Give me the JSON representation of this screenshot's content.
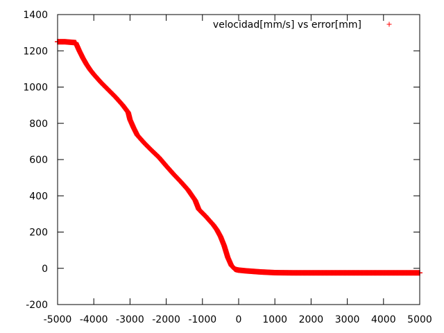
{
  "chart_data": {
    "type": "scatter",
    "title": "",
    "xlabel": "",
    "ylabel": "",
    "xlim": [
      -5000,
      5000
    ],
    "ylim": [
      -200,
      1400
    ],
    "x_ticks": [
      -5000,
      -4000,
      -3000,
      -2000,
      -1000,
      0,
      1000,
      2000,
      3000,
      4000,
      5000
    ],
    "y_ticks": [
      -200,
      0,
      200,
      400,
      600,
      800,
      1000,
      1200,
      1400
    ],
    "grid": false,
    "legend": {
      "position": "top-right"
    },
    "series": [
      {
        "name": "velocidad[mm/s] vs error[mm]",
        "color": "#ff0000",
        "marker": "plus",
        "x": [
          -5000,
          -4800,
          -4500,
          -4400,
          -4300,
          -4200,
          -4100,
          -4000,
          -3800,
          -3600,
          -3400,
          -3200,
          -3050,
          -3000,
          -2900,
          -2800,
          -2600,
          -2400,
          -2200,
          -2000,
          -1800,
          -1600,
          -1400,
          -1200,
          -1100,
          -1000,
          -900,
          -800,
          -700,
          -600,
          -500,
          -400,
          -300,
          -200,
          -100,
          -50,
          0,
          200,
          400,
          600,
          800,
          1000,
          1500,
          2000,
          2500,
          3000,
          3500,
          4000,
          4500,
          5000
        ],
        "y": [
          1250,
          1250,
          1245,
          1200,
          1160,
          1125,
          1095,
          1070,
          1025,
          985,
          945,
          900,
          860,
          820,
          775,
          735,
          690,
          650,
          612,
          565,
          520,
          478,
          433,
          375,
          325,
          305,
          285,
          262,
          240,
          212,
          175,
          125,
          60,
          15,
          -5,
          -8,
          -10,
          -14,
          -17,
          -20,
          -22,
          -24,
          -25,
          -25,
          -25,
          -25,
          -25,
          -25,
          -25,
          -25
        ]
      }
    ]
  }
}
